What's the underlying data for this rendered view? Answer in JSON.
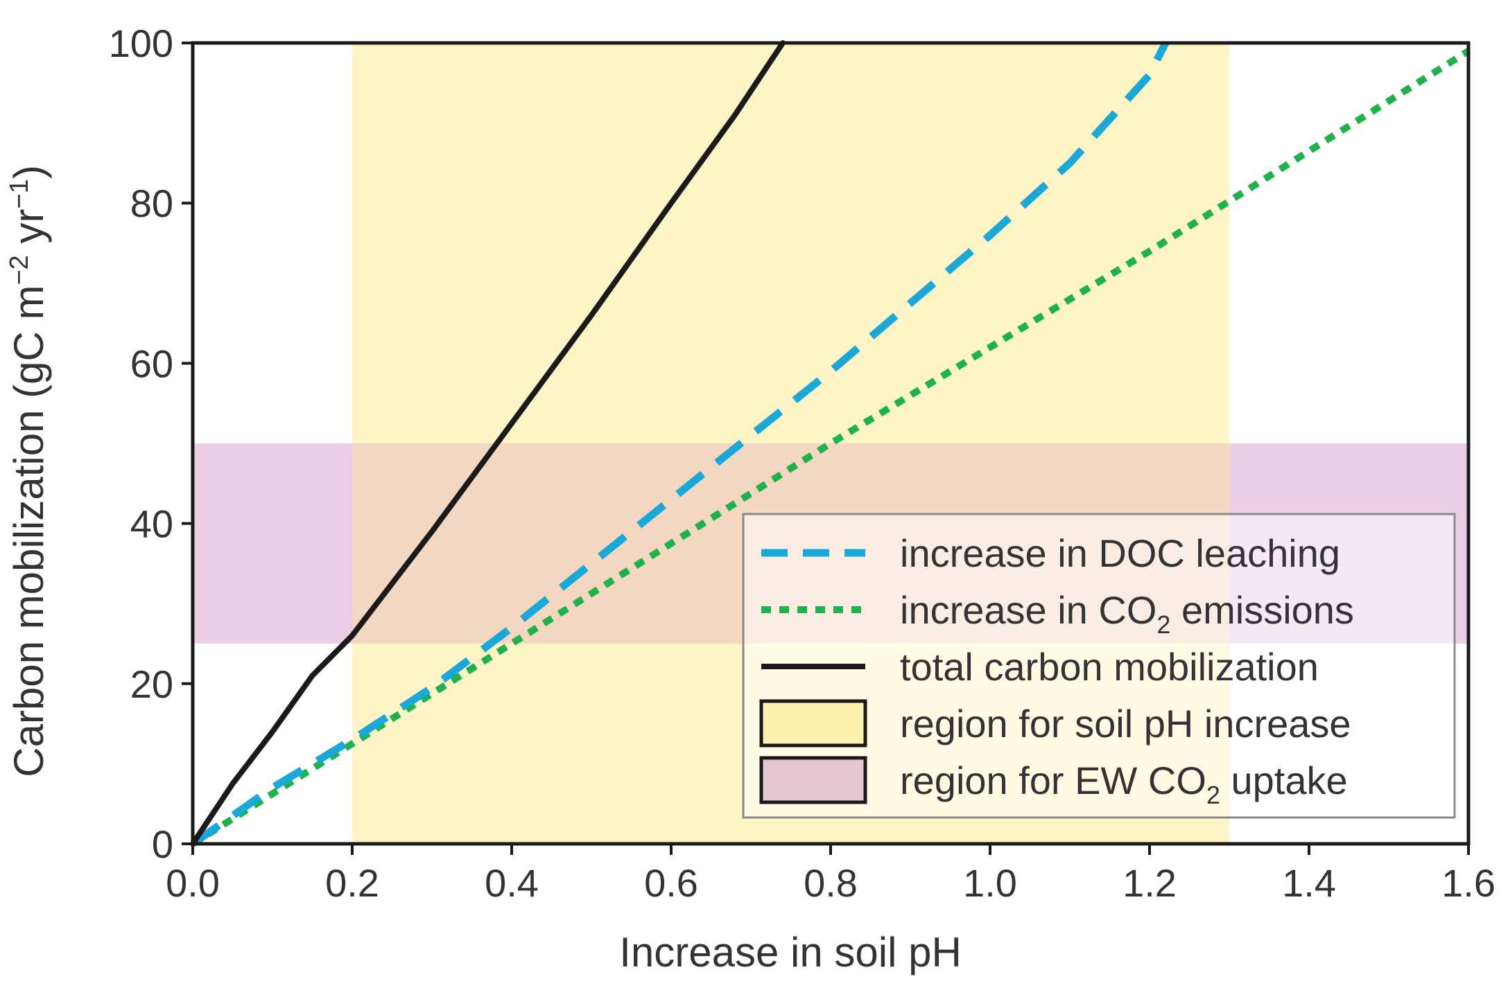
{
  "chart_data": {
    "type": "line",
    "title": "",
    "xlabel": "Increase in soil pH",
    "ylabel": {
      "main": "Carbon mobilization (gC m",
      "sup1": "−2",
      "mid": " yr",
      "sup2": "−1",
      "end": ")"
    },
    "xlim": [
      0,
      1.6
    ],
    "ylim": [
      0,
      100
    ],
    "xticks": [
      "0.0",
      "0.2",
      "0.4",
      "0.6",
      "0.8",
      "1.0",
      "1.2",
      "1.4",
      "1.6"
    ],
    "yticks": [
      "0",
      "20",
      "40",
      "60",
      "80",
      "100"
    ],
    "regions": [
      {
        "name": "region for soil pH increase",
        "axis": "x",
        "range": [
          0.2,
          1.3
        ],
        "color": "#fdf5c6",
        "legend_color": "#fff2b0"
      },
      {
        "name": "region for EW CO2 uptake",
        "axis": "y",
        "range": [
          25,
          50
        ],
        "color": "#ebcde6",
        "legend_color": "#e8c6cf"
      }
    ],
    "overlap_color": "#f3d7c0",
    "series": [
      {
        "name": "increase in DOC leaching",
        "style": "dashed",
        "color": "#19a8d8",
        "x": [
          0,
          0.05,
          0.1,
          0.15,
          0.2,
          0.3,
          0.4,
          0.5,
          0.6,
          0.7,
          0.8,
          0.9,
          1.0,
          1.1,
          1.2,
          1.22
        ],
        "y": [
          0,
          3.5,
          7,
          10,
          13,
          19.5,
          27,
          35,
          43,
          51,
          59,
          67.5,
          76,
          85,
          96,
          100
        ]
      },
      {
        "name": "increase in CO2 emissions",
        "style": "dotted",
        "color": "#1db34a",
        "x": [
          0,
          0.2,
          0.4,
          0.6,
          0.8,
          1.0,
          1.2,
          1.4,
          1.6
        ],
        "y": [
          0,
          12.5,
          25,
          37.5,
          50,
          62,
          74,
          86.5,
          99
        ]
      },
      {
        "name": "total carbon mobilization",
        "style": "solid",
        "color": "#1a1a1a",
        "x": [
          0,
          0.05,
          0.1,
          0.15,
          0.2,
          0.3,
          0.4,
          0.5,
          0.6,
          0.68,
          0.74
        ],
        "y": [
          0,
          7.5,
          14,
          21,
          26,
          39,
          52.5,
          66,
          80,
          91,
          100
        ]
      }
    ],
    "legend": {
      "position": "center-right",
      "items": [
        {
          "key": "doc",
          "pre": "increase in DOC leaching",
          "sub": "",
          "post": ""
        },
        {
          "key": "co2",
          "pre": "increase in CO",
          "sub": "2",
          "post": " emissions"
        },
        {
          "key": "total",
          "pre": "total carbon mobilization",
          "sub": "",
          "post": ""
        },
        {
          "key": "ph",
          "pre": "region for soil pH increase",
          "sub": "",
          "post": ""
        },
        {
          "key": "ew",
          "pre": "region for EW CO",
          "sub": "2",
          "post": " uptake"
        }
      ]
    }
  }
}
